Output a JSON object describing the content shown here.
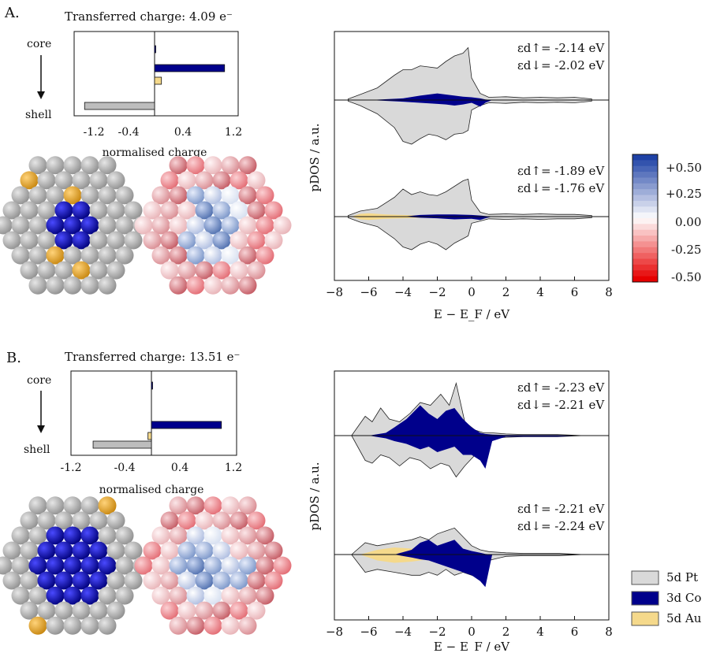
{
  "panels": [
    {
      "label": "A.",
      "transferred_charge": "Transferred charge:  4.09 e⁻",
      "core_label": "core",
      "shell_label": "shell",
      "bar_xlabel": "normalised charge",
      "bar_ticks": [
        "-1.2",
        "-0.4",
        "0.4",
        "1.2"
      ],
      "epsilon_top": [
        "εd↑= -2.14 eV",
        "εd↓= -2.02 eV"
      ],
      "epsilon_bottom": [
        "εd↑= -1.89 eV",
        "εd↓= -1.76 eV"
      ],
      "dos_ylabel": "pDOS  /  a.u.",
      "dos_xlabel": "E − E_F  /  eV",
      "dos_ticks": [
        "−8",
        "−6",
        "−4",
        "−2",
        "0",
        "2",
        "4",
        "6",
        "8"
      ]
    },
    {
      "label": "B.",
      "transferred_charge": "Transferred charge: 13.51 e⁻",
      "core_label": "core",
      "shell_label": "shell",
      "bar_xlabel": "normalised charge",
      "bar_ticks": [
        "-1.2",
        "-0.4",
        "0.4",
        "1.2"
      ],
      "epsilon_top": [
        "εd↑= -2.23 eV",
        "εd↓= -2.21 eV"
      ],
      "epsilon_bottom": [
        "εd↑= -2.21 eV",
        "εd↓= -2.24 eV"
      ],
      "dos_ylabel": "pDOS  /  a.u.",
      "dos_xlabel": "E − E_F / eV",
      "dos_ticks": [
        "−8",
        "−6",
        "−4",
        "−2",
        "0",
        "2",
        "4",
        "6",
        "8"
      ]
    }
  ],
  "colorbar": {
    "ticks": [
      "+0.50",
      "+0.25",
      "0.00",
      "-0.25",
      "-0.50"
    ]
  },
  "legend": [
    {
      "label": "5d Pt",
      "color": "#d9d9d9"
    },
    {
      "label": "3d Co",
      "color": "#00008b"
    },
    {
      "label": "5d Au",
      "color": "#f5d98b"
    }
  ],
  "chart_data": [
    {
      "type": "bar",
      "panel": "A",
      "orientation": "horizontal",
      "xlabel": "normalised charge",
      "xlim": [
        -1.2,
        1.2
      ],
      "rows_top_to_bottom": [
        "core",
        "",
        "",
        "shell"
      ],
      "values": [
        0.01,
        1.02,
        0.1,
        -1.02
      ],
      "colors": [
        "#00008b",
        "#00008b",
        "#f5d98b",
        "#bdbdbd"
      ]
    },
    {
      "type": "bar",
      "panel": "B",
      "orientation": "horizontal",
      "xlabel": "normalised charge",
      "xlim": [
        -1.2,
        1.2
      ],
      "rows_top_to_bottom": [
        "core",
        "",
        "",
        "shell"
      ],
      "values": [
        0.01,
        1.02,
        -0.05,
        -0.85
      ],
      "colors": [
        "#00008b",
        "#00008b",
        "#f5d98b",
        "#bdbdbd"
      ]
    },
    {
      "type": "area",
      "panel": "A",
      "xlabel": "E − E_F  /  eV",
      "ylabel": "pDOS  /  a.u.",
      "xlim": [
        -8,
        8
      ],
      "series": [
        {
          "name": "5d Pt",
          "color": "#d9d9d9",
          "x": [
            -7.2,
            -6.5,
            -5.5,
            -4.5,
            -4.0,
            -3.5,
            -3.0,
            -2.5,
            -2.0,
            -1.5,
            -1.0,
            -0.5,
            -0.2,
            0.0,
            0.5,
            1.0,
            2.0,
            3.0,
            4.0,
            5.0,
            6.0,
            7.0
          ],
          "up": [
            0.02,
            0.1,
            0.22,
            0.45,
            0.55,
            0.55,
            0.62,
            0.6,
            0.58,
            0.7,
            0.8,
            0.85,
            0.95,
            0.4,
            0.12,
            0.05,
            0.06,
            0.04,
            0.05,
            0.04,
            0.05,
            0.02
          ],
          "down": [
            0.02,
            0.1,
            0.25,
            0.5,
            0.75,
            0.8,
            0.7,
            0.62,
            0.65,
            0.72,
            0.62,
            0.6,
            0.55,
            0.18,
            0.1,
            0.05,
            0.06,
            0.04,
            0.05,
            0.04,
            0.05,
            0.02
          ]
        },
        {
          "name": "3d Co",
          "color": "#00008b",
          "x": [
            -6.0,
            -4.0,
            -3.0,
            -2.0,
            -1.5,
            -1.0,
            -0.5,
            0.0,
            0.5,
            0.8,
            1.2
          ],
          "up": [
            0.0,
            0.03,
            0.08,
            0.12,
            0.1,
            0.08,
            0.06,
            0.05,
            0.03,
            0.01,
            0.0
          ],
          "down": [
            0.0,
            0.03,
            0.05,
            0.07,
            0.08,
            0.1,
            0.08,
            0.05,
            0.12,
            0.05,
            0.0
          ]
        }
      ]
    },
    {
      "type": "area",
      "panel": "A-bottom",
      "xlim": [
        -8,
        8
      ],
      "series": [
        {
          "name": "5d Pt",
          "color": "#d9d9d9",
          "x": [
            -7.2,
            -6.5,
            -5.5,
            -4.5,
            -4.0,
            -3.5,
            -3.0,
            -2.5,
            -2.0,
            -1.5,
            -1.0,
            -0.5,
            -0.2,
            0.0,
            0.5,
            1.0,
            2.0,
            3.0,
            4.0,
            5.0,
            6.0,
            7.0
          ],
          "up": [
            0.02,
            0.1,
            0.15,
            0.35,
            0.5,
            0.4,
            0.45,
            0.4,
            0.38,
            0.45,
            0.55,
            0.65,
            0.68,
            0.3,
            0.08,
            0.04,
            0.05,
            0.04,
            0.05,
            0.04,
            0.04,
            0.02
          ],
          "down": [
            0.02,
            0.1,
            0.18,
            0.4,
            0.55,
            0.6,
            0.5,
            0.45,
            0.5,
            0.6,
            0.48,
            0.4,
            0.35,
            0.12,
            0.08,
            0.04,
            0.05,
            0.04,
            0.05,
            0.04,
            0.04,
            0.02
          ]
        },
        {
          "name": "5d Au",
          "color": "#f5d98b",
          "x": [
            -7.0,
            -6.5,
            -6.0,
            -5.0,
            -4.0,
            -3.0,
            -2.0,
            -1.0,
            0.0,
            0.5
          ],
          "up": [
            0.0,
            0.05,
            0.06,
            0.04,
            0.03,
            0.02,
            0.02,
            0.02,
            0.01,
            0.0
          ],
          "down": [
            0.0,
            0.05,
            0.06,
            0.04,
            0.03,
            0.02,
            0.02,
            0.02,
            0.01,
            0.0
          ]
        },
        {
          "name": "3d Co",
          "color": "#00008b",
          "x": [
            -4.0,
            -3.0,
            -2.0,
            -1.0,
            0.0,
            0.5,
            0.8,
            1.2
          ],
          "up": [
            0.0,
            0.03,
            0.04,
            0.04,
            0.03,
            0.02,
            0.01,
            0.0
          ],
          "down": [
            0.0,
            0.02,
            0.03,
            0.05,
            0.04,
            0.06,
            0.03,
            0.0
          ]
        }
      ]
    },
    {
      "type": "area",
      "panel": "B",
      "xlabel": "E − E_F / eV",
      "ylabel": "pDOS  /  a.u.",
      "xlim": [
        -8,
        8
      ],
      "series": [
        {
          "name": "5d Pt",
          "color": "#d9d9d9",
          "x": [
            -7.0,
            -6.2,
            -5.8,
            -5.3,
            -4.8,
            -4.2,
            -3.6,
            -3.0,
            -2.4,
            -1.8,
            -1.3,
            -0.9,
            -0.4,
            0.2,
            0.7,
            1.2,
            2.0,
            3.0,
            4.0,
            5.0,
            6.5
          ],
          "up": [
            0.0,
            0.35,
            0.25,
            0.5,
            0.3,
            0.25,
            0.4,
            0.6,
            0.55,
            0.75,
            0.55,
            0.95,
            0.25,
            0.1,
            0.05,
            0.05,
            0.03,
            0.02,
            0.02,
            0.02,
            0.0
          ],
          "down": [
            0.0,
            0.45,
            0.5,
            0.35,
            0.4,
            0.55,
            0.4,
            0.45,
            0.6,
            0.5,
            0.55,
            0.75,
            0.55,
            0.35,
            0.15,
            0.05,
            0.03,
            0.02,
            0.02,
            0.02,
            0.0
          ]
        },
        {
          "name": "3d Co",
          "color": "#00008b",
          "x": [
            -6.0,
            -5.0,
            -4.5,
            -3.8,
            -3.0,
            -2.5,
            -2.0,
            -1.5,
            -1.0,
            -0.5,
            0.0,
            0.5,
            0.8,
            1.2,
            2.0,
            3.0,
            4.0,
            5.0,
            6.5
          ],
          "up": [
            0.0,
            0.05,
            0.15,
            0.3,
            0.55,
            0.4,
            0.3,
            0.45,
            0.5,
            0.3,
            0.15,
            0.05,
            0.03,
            0.02,
            0.01,
            0.01,
            0.01,
            0.01,
            0.0
          ],
          "down": [
            0.0,
            0.05,
            0.1,
            0.15,
            0.25,
            0.2,
            0.3,
            0.25,
            0.2,
            0.35,
            0.35,
            0.45,
            0.6,
            0.1,
            0.02,
            0.02,
            0.02,
            0.02,
            0.0
          ]
        }
      ]
    },
    {
      "type": "area",
      "panel": "B-bottom",
      "xlim": [
        -8,
        8
      ],
      "series": [
        {
          "name": "5d Pt",
          "color": "#d9d9d9",
          "x": [
            -7.0,
            -6.2,
            -5.5,
            -4.5,
            -3.5,
            -3.0,
            -2.5,
            -2.0,
            -1.5,
            -1.0,
            -0.5,
            0.0,
            0.5,
            1.0,
            2.0,
            3.0,
            4.0,
            5.0,
            6.5
          ],
          "up": [
            0.0,
            0.2,
            0.15,
            0.2,
            0.25,
            0.3,
            0.25,
            0.35,
            0.4,
            0.45,
            0.3,
            0.15,
            0.08,
            0.05,
            0.03,
            0.02,
            0.02,
            0.02,
            0.0
          ],
          "down": [
            0.0,
            0.3,
            0.25,
            0.3,
            0.35,
            0.35,
            0.3,
            0.35,
            0.25,
            0.35,
            0.3,
            0.35,
            0.4,
            0.1,
            0.03,
            0.02,
            0.02,
            0.02,
            0.0
          ]
        },
        {
          "name": "5d Au",
          "color": "#f5d98b",
          "x": [
            -6.5,
            -5.5,
            -4.5,
            -3.5,
            -3.0,
            -2.5,
            -2.0,
            -1.0,
            0.0
          ],
          "up": [
            0.0,
            0.08,
            0.12,
            0.1,
            0.12,
            0.08,
            0.06,
            0.03,
            0.0
          ],
          "down": [
            0.0,
            0.1,
            0.14,
            0.12,
            0.1,
            0.08,
            0.06,
            0.03,
            0.0
          ]
        },
        {
          "name": "3d Co",
          "color": "#00008b",
          "x": [
            -4.5,
            -3.5,
            -3.0,
            -2.5,
            -2.0,
            -1.5,
            -1.0,
            -0.5,
            0.0,
            0.5,
            0.8,
            1.2
          ],
          "up": [
            0.0,
            0.08,
            0.2,
            0.25,
            0.15,
            0.2,
            0.25,
            0.1,
            0.06,
            0.03,
            0.01,
            0.0
          ],
          "down": [
            0.0,
            0.05,
            0.08,
            0.1,
            0.15,
            0.2,
            0.25,
            0.3,
            0.35,
            0.45,
            0.55,
            0.0
          ]
        }
      ]
    }
  ]
}
